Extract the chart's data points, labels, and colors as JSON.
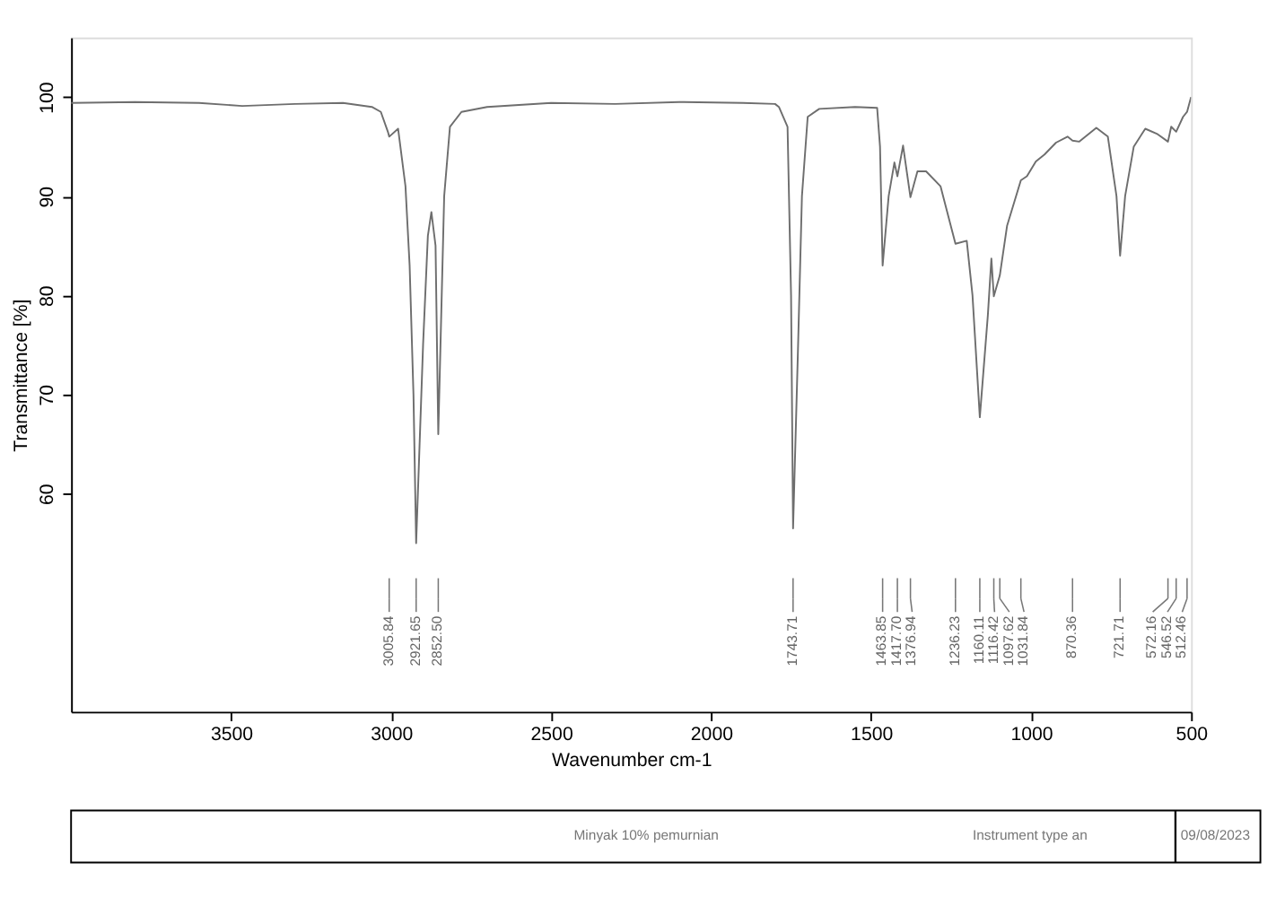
{
  "chart_data": {
    "type": "line",
    "xlabel": "Wavenumber cm-1",
    "ylabel": "Transmittance [%]",
    "xlim": [
      4000,
      500
    ],
    "ylim": [
      38,
      106
    ],
    "xticks": [
      3500,
      3000,
      2500,
      2000,
      1500,
      1000,
      500
    ],
    "yticks": [
      60,
      70,
      80,
      90,
      100
    ],
    "grid": false,
    "marker": "none",
    "line_style": "solid",
    "series": [
      {
        "color": "#6e6e6e",
        "x": [
          4000,
          3800,
          3600,
          3465,
          3300,
          3150,
          3060,
          3032,
          3010,
          3005.84,
          2978,
          2955,
          2942,
          2930,
          2921.65,
          2900,
          2885,
          2874,
          2861,
          2852.5,
          2834,
          2816,
          2780,
          2700,
          2500,
          2300,
          2100,
          1900,
          1800,
          1788,
          1761,
          1750,
          1743.71,
          1728,
          1716,
          1698,
          1662,
          1550,
          1481,
          1472,
          1463.85,
          1445,
          1427,
          1417.7,
          1400,
          1376.94,
          1355,
          1328,
          1283,
          1236.23,
          1201,
          1183,
          1160.11,
          1135,
          1124,
          1116.42,
          1097.62,
          1075,
          1031.84,
          1013,
          985,
          958,
          922,
          886,
          870.36,
          850,
          796,
          760,
          733,
          721.71,
          706,
          679,
          643,
          607,
          572.16,
          562,
          546.52,
          525,
          512.46,
          500
        ],
        "values": [
          99.4,
          99.5,
          99.4,
          99.1,
          99.3,
          99.4,
          99.0,
          98.5,
          96.5,
          96.0,
          96.8,
          91,
          83,
          70,
          55,
          75,
          86,
          88.4,
          85,
          66,
          90,
          97,
          98.5,
          99.0,
          99.4,
          99.3,
          99.5,
          99.4,
          99.3,
          99.0,
          97,
          80,
          56.5,
          75,
          90,
          98,
          98.8,
          99.0,
          98.9,
          95,
          83,
          90,
          93.4,
          92,
          95.1,
          89.9,
          92.5,
          92.5,
          91,
          85.2,
          85.5,
          80,
          67.7,
          78,
          83.7,
          79.9,
          82,
          87,
          91.6,
          92,
          93.5,
          94.2,
          95.4,
          96,
          95.6,
          95.5,
          96.9,
          96,
          90,
          84,
          90,
          95,
          96.8,
          96.3,
          95.5,
          97,
          96.5,
          98,
          98.5,
          100
        ]
      }
    ],
    "ref_lines": [
      {
        "axis": "x",
        "value": 3005.84,
        "label": "3005.84"
      },
      {
        "axis": "x",
        "value": 2921.65,
        "label": "2921.65"
      },
      {
        "axis": "x",
        "value": 2852.5,
        "label": "2852.50"
      },
      {
        "axis": "x",
        "value": 1743.71,
        "label": "1743.71"
      },
      {
        "axis": "x",
        "value": 1463.85,
        "label": "1463.85"
      },
      {
        "axis": "x",
        "value": 1417.7,
        "label": "1417.70"
      },
      {
        "axis": "x",
        "value": 1376.94,
        "label": "1376.94"
      },
      {
        "axis": "x",
        "value": 1236.23,
        "label": "1236.23"
      },
      {
        "axis": "x",
        "value": 1160.11,
        "label": "1160.11"
      },
      {
        "axis": "x",
        "value": 1116.42,
        "label": "1116.42"
      },
      {
        "axis": "x",
        "value": 1097.62,
        "label": "1097.62"
      },
      {
        "axis": "x",
        "value": 1031.84,
        "label": "1031.84"
      },
      {
        "axis": "x",
        "value": 870.36,
        "label": "870.36"
      },
      {
        "axis": "x",
        "value": 721.71,
        "label": "721.71"
      },
      {
        "axis": "x",
        "value": 572.16,
        "label": "572.16"
      },
      {
        "axis": "x",
        "value": 546.52,
        "label": "546.52"
      },
      {
        "axis": "x",
        "value": 512.46,
        "label": "512.46"
      }
    ],
    "annotations": [
      "Minyak 10% pemurnian",
      "Instrument type an",
      "09/08/2023"
    ]
  }
}
